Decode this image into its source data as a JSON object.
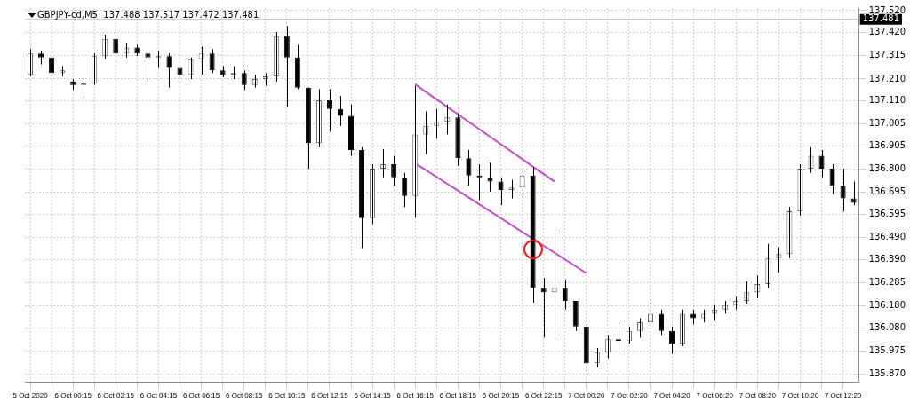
{
  "chart_data": {
    "type": "candlestick",
    "title": "GBPJPY-cd,M5  137.488 137.517 137.472 137.481",
    "categories": [
      "5 Oct 2020",
      null,
      null,
      null,
      "6 Oct 00:15",
      null,
      null,
      null,
      "6 Oct 02:15",
      null,
      null,
      null,
      "6 Oct 04:15",
      null,
      null,
      null,
      "6 Oct 06:15",
      null,
      null,
      null,
      "6 Oct 08:15",
      null,
      null,
      null,
      "6 Oct 10:15",
      null,
      null,
      null,
      "6 Oct 12:15",
      null,
      null,
      null,
      "6 Oct 14:15",
      null,
      null,
      null,
      "6 Oct 16:15",
      null,
      null,
      null,
      "6 Oct 18:15",
      null,
      null,
      null,
      "6 Oct 20:15",
      null,
      null,
      null,
      "6 Oct 22:15",
      null,
      null,
      null,
      "7 Oct 00:20",
      null,
      null,
      null,
      "7 Oct 02:20",
      null,
      null,
      null,
      "7 Oct 04:20",
      null,
      null,
      null,
      "7 Oct 06:20",
      null,
      null,
      null,
      "7 Oct 08:20",
      null,
      null,
      null,
      "7 Oct 10:20",
      null,
      null,
      null,
      "7 Oct 12:20",
      null
    ],
    "ohlc": [
      [
        137.229,
        137.346,
        137.222,
        137.326
      ],
      [
        137.326,
        137.338,
        137.276,
        137.307
      ],
      [
        137.307,
        137.314,
        137.222,
        137.237
      ],
      [
        137.237,
        137.268,
        137.222,
        137.249
      ],
      [
        137.198,
        137.21,
        137.16,
        137.183
      ],
      [
        137.183,
        137.198,
        137.14,
        137.191
      ],
      [
        137.191,
        137.326,
        137.183,
        137.314
      ],
      [
        137.314,
        137.411,
        137.299,
        137.392
      ],
      [
        137.392,
        137.411,
        137.307,
        137.326
      ],
      [
        137.326,
        137.373,
        137.307,
        137.353
      ],
      [
        137.353,
        137.365,
        137.314,
        137.326
      ],
      [
        137.326,
        137.338,
        137.198,
        137.307
      ],
      [
        137.307,
        137.338,
        137.26,
        137.314
      ],
      [
        137.314,
        137.326,
        137.171,
        137.26
      ],
      [
        137.26,
        137.276,
        137.21,
        137.229
      ],
      [
        137.229,
        137.307,
        137.21,
        137.299
      ],
      [
        137.299,
        137.357,
        137.229,
        137.326
      ],
      [
        137.326,
        137.346,
        137.237,
        137.249
      ],
      [
        137.249,
        137.268,
        137.218,
        137.229
      ],
      [
        137.229,
        137.268,
        137.21,
        137.237
      ],
      [
        137.237,
        137.249,
        137.16,
        137.183
      ],
      [
        137.183,
        137.229,
        137.171,
        137.21
      ],
      [
        137.21,
        137.237,
        137.179,
        137.222
      ],
      [
        137.222,
        137.423,
        137.198,
        137.404
      ],
      [
        137.404,
        137.45,
        137.086,
        137.307
      ],
      [
        137.307,
        137.365,
        137.164,
        137.171
      ],
      [
        137.171,
        137.171,
        136.803,
        136.919
      ],
      [
        136.919,
        137.164,
        136.9,
        137.113
      ],
      [
        137.113,
        137.164,
        136.97,
        137.074
      ],
      [
        137.074,
        137.133,
        136.997,
        137.043
      ],
      [
        137.043,
        137.094,
        136.861,
        136.888
      ],
      [
        136.888,
        136.9,
        136.443,
        136.579
      ],
      [
        136.579,
        136.823,
        136.551,
        136.803
      ],
      [
        136.803,
        136.892,
        136.764,
        136.823
      ],
      [
        136.823,
        136.861,
        136.726,
        136.764
      ],
      [
        136.764,
        136.784,
        136.629,
        136.679
      ],
      [
        136.679,
        137.179,
        136.582,
        136.958
      ],
      [
        136.958,
        137.063,
        136.869,
        136.997
      ],
      [
        136.997,
        137.074,
        136.939,
        137.016
      ],
      [
        137.016,
        137.094,
        136.958,
        137.036
      ],
      [
        137.036,
        137.055,
        136.815,
        136.85
      ],
      [
        136.85,
        136.888,
        136.726,
        136.772
      ],
      [
        136.772,
        136.823,
        136.66,
        136.764
      ],
      [
        136.764,
        136.83,
        136.699,
        136.745
      ],
      [
        136.745,
        136.764,
        136.637,
        136.706
      ],
      [
        136.706,
        136.753,
        136.668,
        136.718
      ],
      [
        136.718,
        136.792,
        136.679,
        136.772
      ],
      [
        136.772,
        136.811,
        136.195,
        136.261
      ],
      [
        136.261,
        136.307,
        136.036,
        136.242
      ],
      [
        136.242,
        136.513,
        136.029,
        136.261
      ],
      [
        136.261,
        136.3,
        136.164,
        136.203
      ],
      [
        136.203,
        136.203,
        136.067,
        136.087
      ],
      [
        136.087,
        136.106,
        135.885,
        135.92
      ],
      [
        135.92,
        135.99,
        135.901,
        135.971
      ],
      [
        135.971,
        136.048,
        135.943,
        136.029
      ],
      [
        136.029,
        136.106,
        135.959,
        136.021
      ],
      [
        136.021,
        136.087,
        136.009,
        136.067
      ],
      [
        136.067,
        136.125,
        136.036,
        136.106
      ],
      [
        136.106,
        136.195,
        136.098,
        136.145
      ],
      [
        136.145,
        136.164,
        136.048,
        136.067
      ],
      [
        136.067,
        136.087,
        135.963,
        136.009
      ],
      [
        136.009,
        136.164,
        135.998,
        136.145
      ],
      [
        136.145,
        136.164,
        136.098,
        136.125
      ],
      [
        136.125,
        136.164,
        136.106,
        136.145
      ],
      [
        136.145,
        136.184,
        136.114,
        136.164
      ],
      [
        136.164,
        136.203,
        136.145,
        136.184
      ],
      [
        136.184,
        136.222,
        136.164,
        136.203
      ],
      [
        136.203,
        136.292,
        136.191,
        136.242
      ],
      [
        136.242,
        136.319,
        136.215,
        136.28
      ],
      [
        136.28,
        136.462,
        136.261,
        136.397
      ],
      [
        136.397,
        136.447,
        136.331,
        136.416
      ],
      [
        136.416,
        136.629,
        136.397,
        136.61
      ],
      [
        136.61,
        136.823,
        136.59,
        136.803
      ],
      [
        136.803,
        136.9,
        136.784,
        136.861
      ],
      [
        136.861,
        136.888,
        136.764,
        136.803
      ],
      [
        136.803,
        136.823,
        136.687,
        136.726
      ],
      [
        136.726,
        136.803,
        136.61,
        136.668
      ],
      [
        136.668,
        136.745,
        136.637,
        136.648
      ]
    ],
    "series": [
      {
        "type": "line",
        "color": "#c050c8",
        "values": [
          null,
          null,
          null,
          null,
          null,
          null,
          null,
          null,
          null,
          null,
          null,
          null,
          null,
          null,
          null,
          null,
          null,
          null,
          null,
          null,
          null,
          null,
          null,
          null,
          null,
          null,
          null,
          null,
          null,
          null,
          null,
          null,
          null,
          null,
          null,
          null,
          137.185,
          null,
          null,
          null,
          null,
          null,
          null,
          null,
          null,
          null,
          null,
          null,
          null,
          136.745,
          null,
          null,
          null,
          null,
          null,
          null,
          null,
          null,
          null,
          null,
          null,
          null,
          null,
          null,
          null,
          null,
          null,
          null,
          null,
          null,
          null,
          null,
          null,
          null,
          null,
          null,
          null,
          null
        ]
      },
      {
        "type": "line",
        "color": "#c050c8",
        "values": [
          null,
          null,
          null,
          null,
          null,
          null,
          null,
          null,
          null,
          null,
          null,
          null,
          null,
          null,
          null,
          null,
          null,
          null,
          null,
          null,
          null,
          null,
          null,
          null,
          null,
          null,
          null,
          null,
          null,
          null,
          null,
          null,
          null,
          null,
          null,
          null,
          136.828,
          null,
          null,
          null,
          null,
          null,
          null,
          null,
          null,
          null,
          null,
          null,
          null,
          null,
          null,
          null,
          136.329,
          null,
          null,
          null,
          null,
          null,
          null,
          null,
          null,
          null,
          null,
          null,
          null,
          null,
          null,
          null,
          null,
          null,
          null,
          null,
          null,
          null,
          null,
          null,
          null,
          null
        ]
      }
    ],
    "ylim": [
      135.835,
      137.532
    ],
    "yticks": [
      {
        "value": 137.52,
        "label": "137.520"
      },
      {
        "value": 137.42,
        "label": "137.420"
      },
      {
        "value": 137.315,
        "label": "137.315"
      },
      {
        "value": 137.21,
        "label": "137.210"
      },
      {
        "value": 137.11,
        "label": "137.110"
      },
      {
        "value": 137.005,
        "label": "137.005"
      },
      {
        "value": 136.905,
        "label": "136.905"
      },
      {
        "value": 136.8,
        "label": "136.800"
      },
      {
        "value": 136.695,
        "label": "136.695"
      },
      {
        "value": 136.595,
        "label": "136.595"
      },
      {
        "value": 136.49,
        "label": "136.490"
      },
      {
        "value": 136.39,
        "label": "136.390"
      },
      {
        "value": 136.285,
        "label": "136.285"
      },
      {
        "value": 136.18,
        "label": "136.180"
      },
      {
        "value": 136.08,
        "label": "136.080"
      },
      {
        "value": 135.975,
        "label": "135.975"
      },
      {
        "value": 135.87,
        "label": "135.870"
      }
    ],
    "grid": true,
    "ref_lines": [
      {
        "axis": "y",
        "value": 137.481,
        "label": "137.481",
        "color": "#c0c0c0"
      }
    ]
  }
}
